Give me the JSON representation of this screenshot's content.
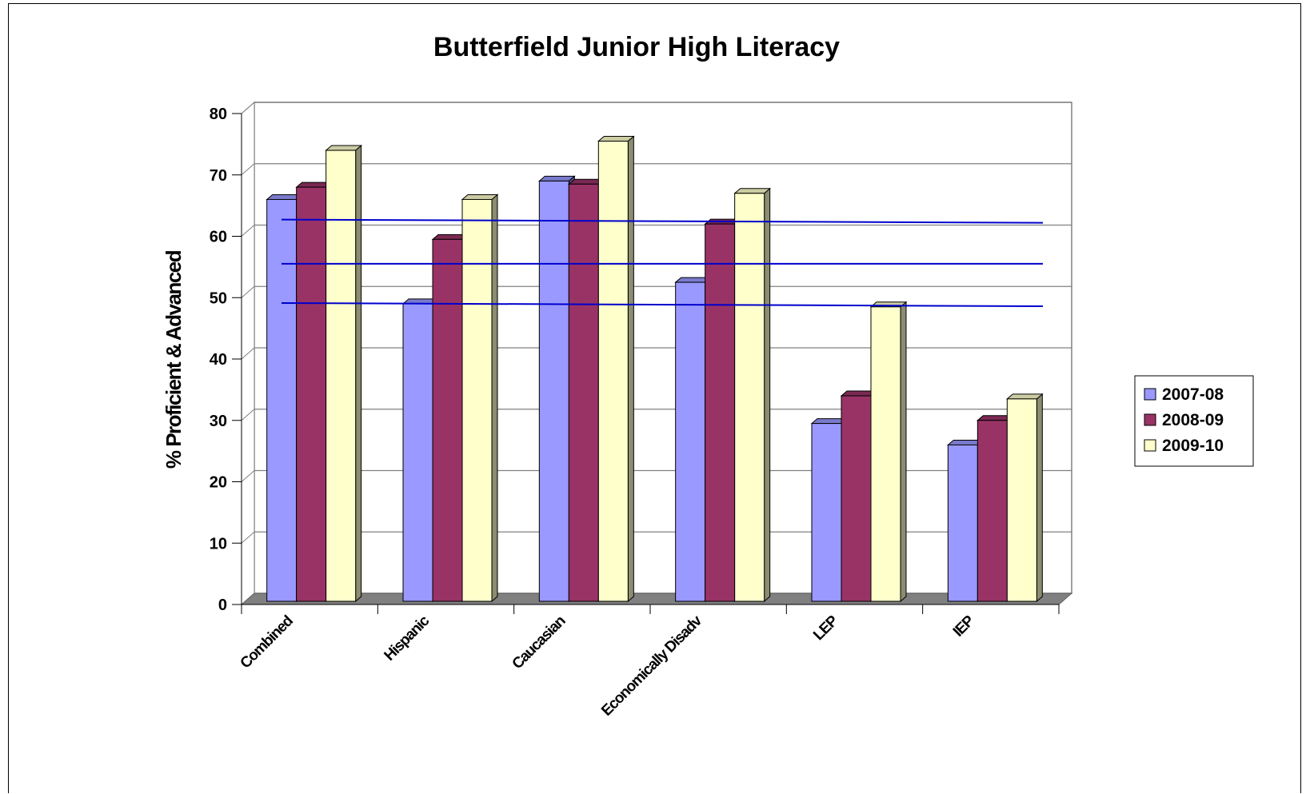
{
  "chart_data": {
    "type": "bar",
    "title": "Butterfield Junior High Literacy",
    "ylabel": "% Proficient & Advanced",
    "xlabel": "",
    "ylim": [
      0,
      80
    ],
    "yticks": [
      "0",
      "10",
      "20",
      "30",
      "40",
      "50",
      "60",
      "70",
      "80"
    ],
    "categories": [
      "Combined",
      "Hispanic",
      "Caucasian",
      "Economically Disadv",
      "LEP",
      "IEP"
    ],
    "series": [
      {
        "name": "2007-08",
        "color": "#9999FF",
        "values": [
          66,
          49,
          69,
          52.5,
          29.5,
          26
        ]
      },
      {
        "name": "2008-09",
        "color": "#993366",
        "values": [
          68,
          59.5,
          68.5,
          62,
          34,
          30
        ]
      },
      {
        "name": "2009-10",
        "color": "#FFFFCC",
        "values": [
          74,
          66,
          75.5,
          67,
          48.5,
          33.5
        ]
      }
    ],
    "reference_lines": [
      62.2,
      55,
      48.6
    ],
    "reference_line_color": "#0000CC",
    "grid": true,
    "legend_position": "right",
    "floor_color": "#808080"
  }
}
